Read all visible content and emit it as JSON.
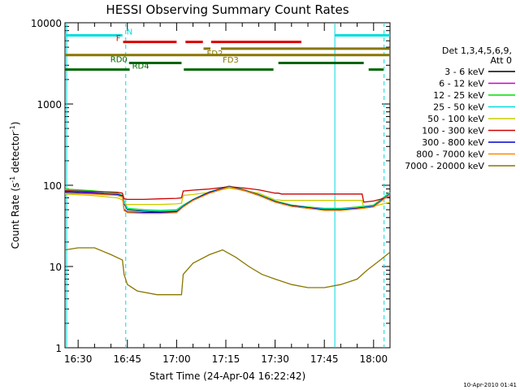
{
  "chart_data": {
    "type": "line",
    "title": "HESSI Observing Summary Count Rates",
    "xlabel": "Start Time (24-Apr-04 16:22:42)",
    "ylabel_main": "Count Rate (s",
    "ylabel_sup1": "-1",
    "ylabel_mid": " detector",
    "ylabel_sup2": "-1",
    "ylabel_end": ")",
    "yscale": "log",
    "xlim": [
      986,
      1085
    ],
    "ylim": [
      1,
      10000
    ],
    "x_ticks": [
      {
        "value": 990,
        "label": "16:30"
      },
      {
        "value": 1005,
        "label": "16:45"
      },
      {
        "value": 1020,
        "label": "17:00"
      },
      {
        "value": 1035,
        "label": "17:15"
      },
      {
        "value": 1050,
        "label": "17:30"
      },
      {
        "value": 1065,
        "label": "17:45"
      },
      {
        "value": 1080,
        "label": "18:00"
      }
    ],
    "y_ticks": [
      {
        "value": 1,
        "label": "1"
      },
      {
        "value": 10,
        "label": "10"
      },
      {
        "value": 100,
        "label": "100"
      },
      {
        "value": 1000,
        "label": "1000"
      },
      {
        "value": 10000,
        "label": "10000"
      }
    ],
    "legend_placement": "right",
    "legend_title_1": "Det 1,3,4,5,6,9,",
    "legend_title_2": "Att 0",
    "timestamp": "10-Apr-2010 01:41",
    "series": [
      {
        "name": "3 - 6 keV",
        "color": "#000000",
        "points": [
          [
            986,
            85
          ],
          [
            994,
            82
          ],
          [
            1002,
            75
          ],
          [
            1003.5,
            72
          ],
          [
            1004,
            60
          ],
          [
            1005,
            50
          ],
          [
            1010,
            48
          ],
          [
            1015,
            47
          ],
          [
            1020,
            48
          ],
          [
            1022,
            55
          ],
          [
            1025,
            65
          ],
          [
            1030,
            80
          ],
          [
            1036,
            95
          ],
          [
            1041,
            85
          ],
          [
            1045,
            75
          ],
          [
            1050,
            62
          ],
          [
            1055,
            55
          ],
          [
            1060,
            52
          ],
          [
            1065,
            50
          ],
          [
            1070,
            50
          ],
          [
            1075,
            52
          ],
          [
            1080,
            55
          ],
          [
            1085,
            80
          ]
        ]
      },
      {
        "name": "6 - 12 keV",
        "color": "#cc00cc",
        "points": [
          [
            986,
            86
          ],
          [
            994,
            82
          ],
          [
            1002,
            76
          ],
          [
            1003.5,
            72
          ],
          [
            1004,
            62
          ],
          [
            1005,
            51
          ],
          [
            1010,
            49
          ],
          [
            1015,
            48
          ],
          [
            1020,
            49
          ],
          [
            1022,
            56
          ],
          [
            1025,
            66
          ],
          [
            1030,
            82
          ],
          [
            1036,
            97
          ],
          [
            1041,
            86
          ],
          [
            1045,
            76
          ],
          [
            1050,
            63
          ],
          [
            1055,
            56
          ],
          [
            1060,
            53
          ],
          [
            1065,
            51
          ],
          [
            1070,
            51
          ],
          [
            1075,
            53
          ],
          [
            1080,
            56
          ],
          [
            1085,
            81
          ]
        ]
      },
      {
        "name": "12 - 25 keV",
        "color": "#00dd00",
        "points": [
          [
            986,
            90
          ],
          [
            994,
            86
          ],
          [
            1002,
            80
          ],
          [
            1003.5,
            75
          ],
          [
            1004,
            64
          ],
          [
            1005,
            52
          ],
          [
            1010,
            50
          ],
          [
            1015,
            49
          ],
          [
            1020,
            50
          ],
          [
            1022,
            57
          ],
          [
            1025,
            67
          ],
          [
            1030,
            83
          ],
          [
            1036,
            98
          ],
          [
            1041,
            87
          ],
          [
            1045,
            77
          ],
          [
            1050,
            64
          ],
          [
            1055,
            57
          ],
          [
            1060,
            54
          ],
          [
            1065,
            52
          ],
          [
            1070,
            52
          ],
          [
            1075,
            54
          ],
          [
            1080,
            57
          ],
          [
            1085,
            82
          ]
        ]
      },
      {
        "name": "25 - 50 keV",
        "color": "#00dddd",
        "points": [
          [
            986,
            88
          ],
          [
            994,
            84
          ],
          [
            1002,
            78
          ],
          [
            1003.5,
            74
          ],
          [
            1004,
            63
          ],
          [
            1005,
            51
          ],
          [
            1010,
            49
          ],
          [
            1015,
            48
          ],
          [
            1020,
            49
          ],
          [
            1022,
            56
          ],
          [
            1025,
            66
          ],
          [
            1030,
            82
          ],
          [
            1036,
            97
          ],
          [
            1041,
            86
          ],
          [
            1045,
            76
          ],
          [
            1050,
            63
          ],
          [
            1055,
            56
          ],
          [
            1060,
            53
          ],
          [
            1065,
            51
          ],
          [
            1070,
            51
          ],
          [
            1075,
            53
          ],
          [
            1080,
            56
          ],
          [
            1085,
            81
          ]
        ]
      },
      {
        "name": "50 - 100 keV",
        "color": "#cccc00",
        "points": [
          [
            986,
            78
          ],
          [
            994,
            75
          ],
          [
            1002,
            70
          ],
          [
            1003.5,
            66
          ],
          [
            1004,
            60
          ],
          [
            1005,
            58
          ],
          [
            1010,
            58
          ],
          [
            1015,
            58
          ],
          [
            1020,
            59
          ],
          [
            1021.5,
            60
          ],
          [
            1022,
            75
          ],
          [
            1025,
            77
          ],
          [
            1030,
            82
          ],
          [
            1036,
            92
          ],
          [
            1041,
            86
          ],
          [
            1045,
            80
          ],
          [
            1050,
            66
          ],
          [
            1051,
            66
          ],
          [
            1052,
            65
          ],
          [
            1060,
            65
          ],
          [
            1066,
            65
          ],
          [
            1070,
            65
          ],
          [
            1075,
            65
          ],
          [
            1076.5,
            65
          ],
          [
            1077,
            52
          ],
          [
            1080,
            55
          ],
          [
            1085,
            62
          ]
        ]
      },
      {
        "name": "100 - 300 keV",
        "color": "#cc0000",
        "points": [
          [
            986,
            86
          ],
          [
            994,
            84
          ],
          [
            1002,
            82
          ],
          [
            1003.5,
            80
          ],
          [
            1004,
            68
          ],
          [
            1005,
            67
          ],
          [
            1010,
            67
          ],
          [
            1015,
            68
          ],
          [
            1020,
            69
          ],
          [
            1021.5,
            70
          ],
          [
            1022,
            85
          ],
          [
            1025,
            87
          ],
          [
            1030,
            90
          ],
          [
            1036,
            96
          ],
          [
            1041,
            92
          ],
          [
            1045,
            88
          ],
          [
            1050,
            80
          ],
          [
            1051,
            80
          ],
          [
            1052,
            78
          ],
          [
            1060,
            78
          ],
          [
            1066,
            78
          ],
          [
            1070,
            78
          ],
          [
            1075,
            78
          ],
          [
            1076.5,
            78
          ],
          [
            1077,
            62
          ],
          [
            1080,
            64
          ],
          [
            1085,
            72
          ]
        ]
      },
      {
        "name": "300 - 800 keV",
        "color": "#0000cc",
        "points": [
          [
            986,
            82
          ],
          [
            994,
            80
          ],
          [
            1002,
            77
          ],
          [
            1003.5,
            74
          ],
          [
            1004,
            50
          ],
          [
            1005,
            47
          ],
          [
            1010,
            46
          ],
          [
            1015,
            46
          ],
          [
            1020,
            47
          ],
          [
            1022,
            55
          ],
          [
            1025,
            66
          ],
          [
            1030,
            82
          ],
          [
            1036,
            96
          ],
          [
            1041,
            86
          ],
          [
            1045,
            76
          ],
          [
            1050,
            63
          ],
          [
            1055,
            56
          ],
          [
            1060,
            53
          ],
          [
            1065,
            50
          ],
          [
            1070,
            50
          ],
          [
            1075,
            52
          ],
          [
            1080,
            55
          ],
          [
            1085,
            78
          ]
        ]
      },
      {
        "name": "800 - 7000 keV",
        "color": "#ff8800",
        "points": [
          [
            986,
            80
          ],
          [
            994,
            78
          ],
          [
            1002,
            75
          ],
          [
            1003.5,
            72
          ],
          [
            1004,
            49
          ],
          [
            1005,
            46
          ],
          [
            1010,
            45
          ],
          [
            1015,
            45
          ],
          [
            1020,
            46
          ],
          [
            1022,
            54
          ],
          [
            1025,
            65
          ],
          [
            1030,
            80
          ],
          [
            1036,
            95
          ],
          [
            1041,
            85
          ],
          [
            1045,
            75
          ],
          [
            1050,
            62
          ],
          [
            1055,
            55
          ],
          [
            1060,
            52
          ],
          [
            1065,
            49
          ],
          [
            1070,
            49
          ],
          [
            1075,
            51
          ],
          [
            1080,
            54
          ],
          [
            1085,
            77
          ]
        ]
      },
      {
        "name": "7000 - 20000 keV",
        "color": "#887700",
        "points": [
          [
            986,
            16
          ],
          [
            990,
            17
          ],
          [
            995,
            17
          ],
          [
            1000,
            14
          ],
          [
            1003.5,
            12
          ],
          [
            1004,
            8
          ],
          [
            1005,
            6
          ],
          [
            1008,
            5
          ],
          [
            1014,
            4.5
          ],
          [
            1020,
            4.5
          ],
          [
            1021.5,
            4.5
          ],
          [
            1022,
            8
          ],
          [
            1025,
            11
          ],
          [
            1030,
            14
          ],
          [
            1034,
            16
          ],
          [
            1038,
            13
          ],
          [
            1042,
            10
          ],
          [
            1046,
            8
          ],
          [
            1050,
            7
          ],
          [
            1055,
            6
          ],
          [
            1060,
            5.5
          ],
          [
            1065,
            5.5
          ],
          [
            1070,
            6
          ],
          [
            1075,
            7
          ],
          [
            1078,
            9
          ],
          [
            1082,
            12
          ],
          [
            1085,
            15
          ]
        ]
      }
    ],
    "state_bars": [
      {
        "label": "N",
        "color": "#00dddd",
        "y": 7000,
        "segments": [
          [
            986,
            1003.5
          ],
          [
            1068.2,
            1085
          ]
        ]
      },
      {
        "label": "F",
        "color": "#dd0000",
        "y": 5800,
        "segments": [
          [
            1003.7,
            1020
          ],
          [
            1022.7,
            1028
          ],
          [
            1030.5,
            1058
          ]
        ]
      },
      {
        "label": "FD2",
        "color": "#887700",
        "y": 4800,
        "segments": [
          [
            1028.2,
            1030.3
          ],
          [
            1033.5,
            1085
          ]
        ]
      },
      {
        "label": "FD3",
        "color": "#887700",
        "y": 4000,
        "segments": [
          [
            986,
            1085
          ]
        ]
      },
      {
        "label": "RD0",
        "color": "#006600",
        "y": 3200,
        "segments": [
          [
            1005.5,
            1021.5
          ],
          [
            1051,
            1077
          ]
        ]
      },
      {
        "label": "RD4",
        "color": "#006600",
        "y": 2650,
        "segments": [
          [
            986,
            1005.7
          ],
          [
            1022.2,
            1049.5
          ],
          [
            1078.5,
            1083
          ]
        ]
      }
    ],
    "vertical_lines": [
      {
        "x": 986.5,
        "style": "solid"
      },
      {
        "x": 1004.5,
        "style": "dashed"
      },
      {
        "x": 1068.2,
        "style": "solid"
      },
      {
        "x": 1083.2,
        "style": "dashed"
      }
    ]
  }
}
